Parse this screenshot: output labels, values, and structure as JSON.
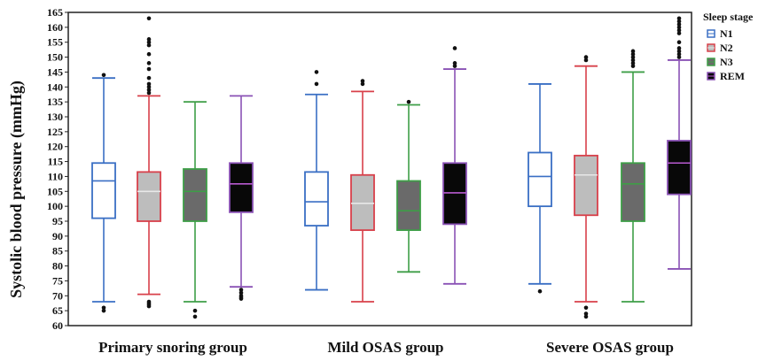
{
  "chart_data": {
    "type": "box",
    "ylabel": "Systolic blood pressure (mmHg)",
    "ylim": [
      60,
      165
    ],
    "yticks": [
      60,
      65,
      70,
      75,
      80,
      85,
      90,
      95,
      100,
      105,
      110,
      115,
      120,
      125,
      130,
      135,
      140,
      145,
      150,
      155,
      160,
      165
    ],
    "grid": false,
    "legend_title": "Sleep stage",
    "legend_position": "right-top",
    "groups": [
      "Primary snoring group",
      "Mild OSAS group",
      "Severe OSAS group"
    ],
    "series": [
      {
        "name": "N1",
        "stroke": "#3a6fc4",
        "fill": "#ffffff",
        "median_color": "#3a6fc4"
      },
      {
        "name": "N2",
        "stroke": "#d8404a",
        "fill": "#bdbdbd",
        "median_color": "#e8e8e8"
      },
      {
        "name": "N3",
        "stroke": "#3e9e47",
        "fill": "#6a6a6a",
        "median_color": "#3e9e47"
      },
      {
        "name": "REM",
        "stroke": "#8a52b5",
        "fill": "#080808",
        "median_color": "#b85ad0"
      }
    ],
    "boxes": [
      [
        {
          "min": 68,
          "q1": 96,
          "median": 108.5,
          "q3": 114.5,
          "max": 143,
          "outliers": [
            65,
            66,
            144
          ]
        },
        {
          "min": 70.5,
          "q1": 95,
          "median": 105,
          "q3": 111.5,
          "max": 137,
          "outliers": [
            66.5,
            67,
            67.5,
            68,
            138,
            139,
            140,
            141,
            143,
            146,
            148,
            151,
            154,
            155,
            156,
            163
          ]
        },
        {
          "min": 68,
          "q1": 95,
          "median": 105,
          "q3": 112.5,
          "max": 135,
          "outliers": [
            63,
            65
          ]
        },
        {
          "min": 73,
          "q1": 98,
          "median": 107.5,
          "q3": 114.5,
          "max": 137,
          "outliers": [
            69,
            69.5,
            70,
            71,
            72
          ]
        }
      ],
      [
        {
          "min": 72,
          "q1": 93.5,
          "median": 101.5,
          "q3": 111.5,
          "max": 137.5,
          "outliers": [
            141,
            145
          ]
        },
        {
          "min": 68,
          "q1": 92,
          "median": 101,
          "q3": 110.5,
          "max": 138.5,
          "outliers": [
            141,
            142
          ]
        },
        {
          "min": 78,
          "q1": 92,
          "median": 98.5,
          "q3": 108.5,
          "max": 134,
          "outliers": [
            135
          ]
        },
        {
          "min": 74,
          "q1": 94,
          "median": 104.5,
          "q3": 114.5,
          "max": 146,
          "outliers": [
            147,
            148,
            153
          ]
        }
      ],
      [
        {
          "min": 74,
          "q1": 100,
          "median": 110,
          "q3": 118,
          "max": 141,
          "outliers": [
            71.5
          ]
        },
        {
          "min": 68,
          "q1": 97,
          "median": 110.5,
          "q3": 117,
          "max": 147,
          "outliers": [
            63,
            64,
            66,
            149,
            150
          ]
        },
        {
          "min": 68,
          "q1": 95,
          "median": 107.5,
          "q3": 114.5,
          "max": 145,
          "outliers": [
            147,
            148,
            149,
            150,
            151,
            152
          ]
        },
        {
          "min": 79,
          "q1": 104,
          "median": 114.5,
          "q3": 122,
          "max": 149,
          "outliers": [
            150,
            151,
            152,
            153,
            155,
            158,
            159,
            160,
            161,
            162,
            163
          ]
        }
      ]
    ]
  }
}
